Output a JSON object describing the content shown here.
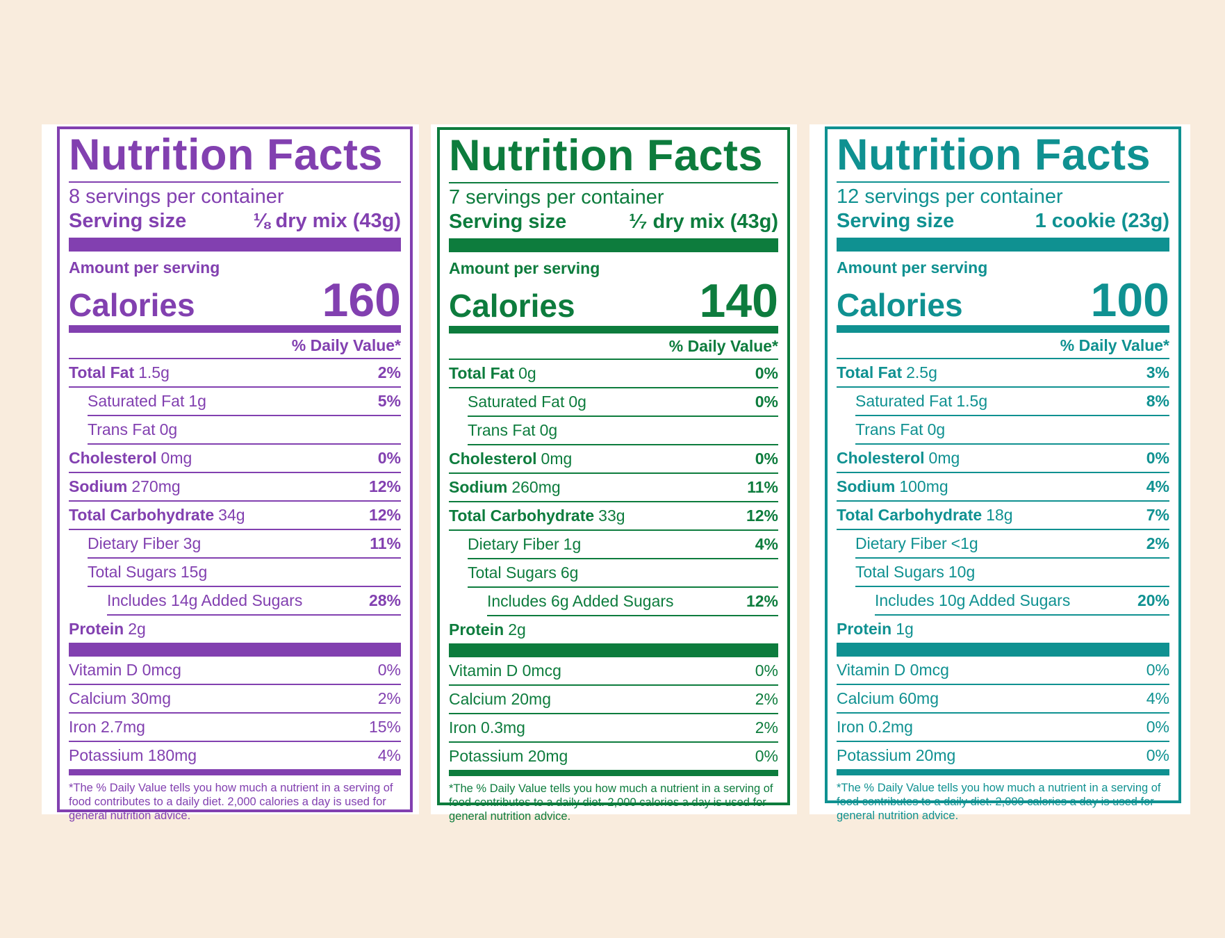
{
  "labels": [
    {
      "title": "Nutrition Facts",
      "servings": "8 servings per container",
      "serving_size_label": "Serving size",
      "serving_size_value": "⅛ dry mix (43g)",
      "amount_per_serving": "Amount per serving",
      "calories_label": "Calories",
      "calories_value": "160",
      "dv_header": "% Daily Value*",
      "total_fat": {
        "name": "Total Fat",
        "amount": "1.5g",
        "pct": "2%"
      },
      "saturated_fat": {
        "name": "Saturated Fat",
        "amount": "1g",
        "pct": "5%"
      },
      "trans_fat": {
        "name": "Trans Fat",
        "amount": "0g"
      },
      "cholesterol": {
        "name": "Cholesterol",
        "amount": "0mg",
        "pct": "0%"
      },
      "sodium": {
        "name": "Sodium",
        "amount": "270mg",
        "pct": "12%"
      },
      "total_carb": {
        "name": "Total Carbohydrate",
        "amount": "34g",
        "pct": "12%"
      },
      "fiber": {
        "name": "Dietary Fiber",
        "amount": "3g",
        "pct": "11%"
      },
      "sugars": {
        "name": "Total Sugars",
        "amount": "15g"
      },
      "added_sugars": {
        "text": "Includes 14g Added Sugars",
        "pct": "28%"
      },
      "protein": {
        "name": "Protein",
        "amount": "2g"
      },
      "vitamin_d": {
        "text": "Vitamin D  0mcg",
        "pct": "0%"
      },
      "calcium": {
        "text": "Calcium 30mg",
        "pct": "2%"
      },
      "iron": {
        "text": "Iron 2.7mg",
        "pct": "15%"
      },
      "potassium": {
        "text": "Potassium  180mg",
        "pct": "4%"
      },
      "footnote": "*The % Daily Value tells you how much a nutrient in a serving of food contributes to a daily diet. 2,000 calories a day is used for general nutrition advice."
    },
    {
      "title": "Nutrition Facts",
      "servings": "7 servings per container",
      "serving_size_label": "Serving size",
      "serving_size_value": "¹⁄₇ dry mix (43g)",
      "amount_per_serving": "Amount per serving",
      "calories_label": "Calories",
      "calories_value": "140",
      "dv_header": "% Daily Value*",
      "total_fat": {
        "name": "Total Fat",
        "amount": "0g",
        "pct": "0%"
      },
      "saturated_fat": {
        "name": "Saturated Fat",
        "amount": "0g",
        "pct": "0%"
      },
      "trans_fat": {
        "name": "Trans Fat",
        "amount": "0g"
      },
      "cholesterol": {
        "name": "Cholesterol",
        "amount": "0mg",
        "pct": "0%"
      },
      "sodium": {
        "name": "Sodium",
        "amount": "260mg",
        "pct": "11%"
      },
      "total_carb": {
        "name": "Total Carbohydrate",
        "amount": "33g",
        "pct": "12%"
      },
      "fiber": {
        "name": "Dietary Fiber",
        "amount": "1g",
        "pct": "4%"
      },
      "sugars": {
        "name": "Total Sugars",
        "amount": "6g"
      },
      "added_sugars": {
        "text": "Includes 6g Added Sugars",
        "pct": "12%"
      },
      "protein": {
        "name": "Protein",
        "amount": "2g"
      },
      "vitamin_d": {
        "text": "Vitamin D  0mcg",
        "pct": "0%"
      },
      "calcium": {
        "text": "Calcium  20mg",
        "pct": "2%"
      },
      "iron": {
        "text": "Iron 0.3mg",
        "pct": "2%"
      },
      "potassium": {
        "text": "Potassium  20mg",
        "pct": "0%"
      },
      "footnote": "*The % Daily Value tells you how much a nutrient in a serving of food contributes to a daily diet. 2,000 calories a day is used for general nutrition advice."
    },
    {
      "title": "Nutrition Facts",
      "servings": "12 servings per container",
      "serving_size_label": "Serving size",
      "serving_size_value": "1 cookie (23g)",
      "amount_per_serving": "Amount per serving",
      "calories_label": "Calories",
      "calories_value": "100",
      "dv_header": "% Daily Value*",
      "total_fat": {
        "name": "Total Fat",
        "amount": "2.5g",
        "pct": "3%"
      },
      "saturated_fat": {
        "name": "Saturated Fat",
        "amount": "1.5g",
        "pct": "8%"
      },
      "trans_fat": {
        "name": "Trans Fat",
        "amount": "0g"
      },
      "cholesterol": {
        "name": "Cholesterol",
        "amount": "0mg",
        "pct": "0%"
      },
      "sodium": {
        "name": "Sodium",
        "amount": "100mg",
        "pct": "4%"
      },
      "total_carb": {
        "name": "Total Carbohydrate",
        "amount": "18g",
        "pct": "7%"
      },
      "fiber": {
        "name": "Dietary Fiber",
        "amount": "<1g",
        "pct": "2%"
      },
      "sugars": {
        "name": "Total Sugars",
        "amount": "10g"
      },
      "added_sugars": {
        "text": "Includes 10g Added Sugars",
        "pct": "20%"
      },
      "protein": {
        "name": "Protein",
        "amount": "1g"
      },
      "vitamin_d": {
        "text": "Vitamin D  0mcg",
        "pct": "0%"
      },
      "calcium": {
        "text": "Calcium 60mg",
        "pct": "4%"
      },
      "iron": {
        "text": "Iron 0.2mg",
        "pct": "0%"
      },
      "potassium": {
        "text": "Potassium  20mg",
        "pct": "0%"
      },
      "footnote": "*The % Daily Value tells you how much a nutrient in a serving of food contributes to a daily diet. 2,000 calories a day is used for general nutrition advice."
    }
  ],
  "colors": {
    "background": "#f9ecdd",
    "label_1": "#8240b0",
    "label_2": "#0d7c3d",
    "label_3": "#0f9191"
  }
}
